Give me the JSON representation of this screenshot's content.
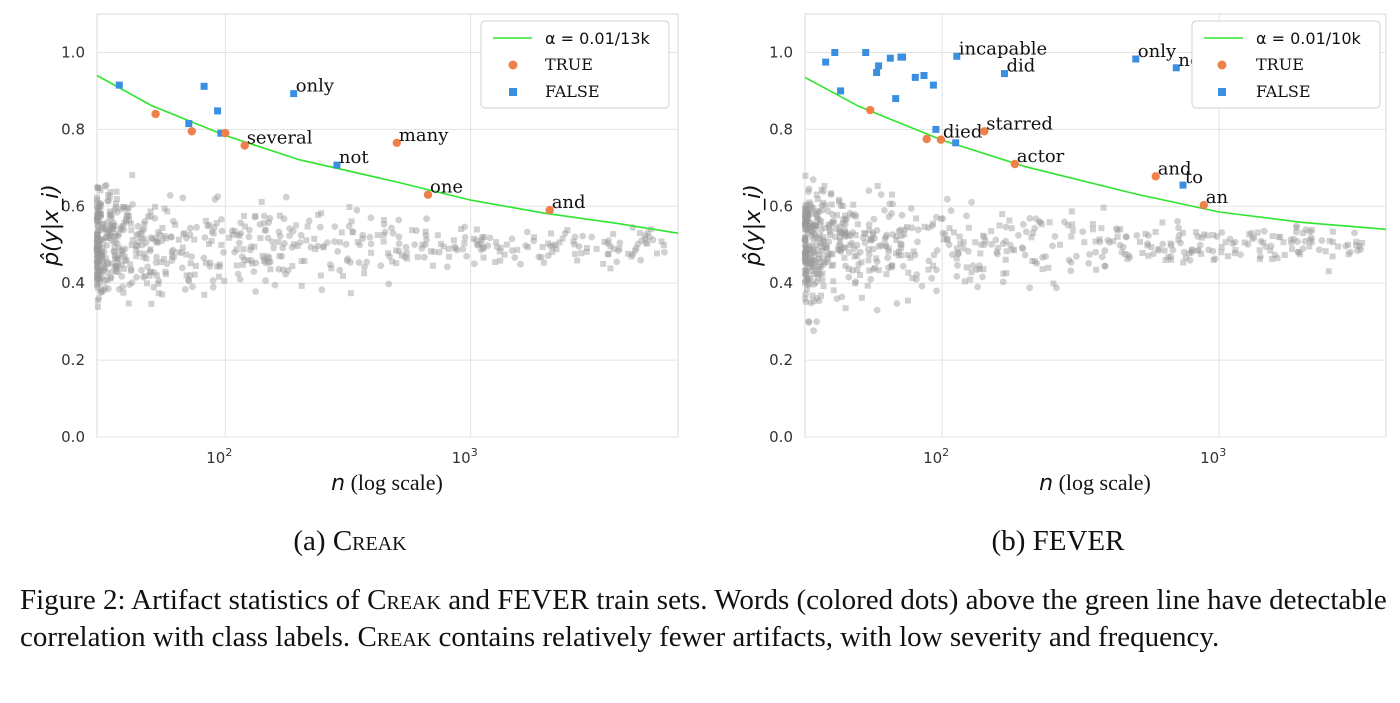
{
  "colors": {
    "grid": "#e3e3e3",
    "curve": "#2ee62e",
    "true": "#f0804a",
    "false": "#3b8fe0",
    "bg_points": "#9a9a9a"
  },
  "chart_data": [
    {
      "type": "scatter",
      "panel": "a",
      "subtitle": "(a) CREAK",
      "subtitle_prefix": "(a) ",
      "subtitle_name": "Creak",
      "xlabel_var": "n",
      "xlabel_rest": " (log scale)",
      "ylabel": "p̂(y|x_i)",
      "xscale": "log",
      "xlim": [
        30,
        7000
      ],
      "ylim": [
        0.0,
        1.1
      ],
      "yticks": [
        "0.0",
        "0.2",
        "0.4",
        "0.6",
        "0.8",
        "1.0"
      ],
      "xticks": [
        {
          "base": "10",
          "exp": "2",
          "value": 100
        },
        {
          "base": "10",
          "exp": "3",
          "value": 1000
        }
      ],
      "legend": {
        "position": "top-right",
        "curve_label": "α = 0.01/13k",
        "true_label": "TRUE",
        "false_label": "FALSE"
      },
      "curve": {
        "n": [
          30,
          50,
          100,
          200,
          500,
          1000,
          2000,
          4000,
          7000
        ],
        "y": [
          0.94,
          0.862,
          0.784,
          0.721,
          0.663,
          0.616,
          0.582,
          0.555,
          0.53
        ]
      },
      "true_points": [
        {
          "n": 52,
          "y": 0.84,
          "word": ""
        },
        {
          "n": 73,
          "y": 0.795,
          "word": ""
        },
        {
          "n": 100,
          "y": 0.79,
          "word": ""
        },
        {
          "n": 120,
          "y": 0.758,
          "word": "several"
        },
        {
          "n": 500,
          "y": 0.765,
          "word": "many"
        },
        {
          "n": 670,
          "y": 0.63,
          "word": "one"
        },
        {
          "n": 2100,
          "y": 0.59,
          "word": "and"
        }
      ],
      "false_points": [
        {
          "n": 37,
          "y": 0.915,
          "word": ""
        },
        {
          "n": 71,
          "y": 0.815,
          "word": ""
        },
        {
          "n": 82,
          "y": 0.912,
          "word": ""
        },
        {
          "n": 93,
          "y": 0.848,
          "word": ""
        },
        {
          "n": 96,
          "y": 0.79,
          "word": ""
        },
        {
          "n": 190,
          "y": 0.893,
          "word": "only"
        },
        {
          "n": 285,
          "y": 0.707,
          "word": "not"
        }
      ]
    },
    {
      "type": "scatter",
      "panel": "b",
      "subtitle": "(b) FEVER",
      "subtitle_prefix": "(b) ",
      "subtitle_name": "FEVER",
      "xlabel_var": "n",
      "xlabel_rest": " (log scale)",
      "ylabel": "p̂(y|x_i)",
      "xscale": "log",
      "xlim": [
        32,
        4000
      ],
      "ylim": [
        0.0,
        1.1
      ],
      "yticks": [
        "0.0",
        "0.2",
        "0.4",
        "0.6",
        "0.8",
        "1.0"
      ],
      "xticks": [
        {
          "base": "10",
          "exp": "2",
          "value": 100
        },
        {
          "base": "10",
          "exp": "3",
          "value": 1000
        }
      ],
      "legend": {
        "position": "top-right",
        "curve_label": "α = 0.01/10k",
        "true_label": "TRUE",
        "false_label": "FALSE"
      },
      "curve": {
        "n": [
          32,
          50,
          100,
          200,
          500,
          1000,
          2000,
          4000
        ],
        "y": [
          0.935,
          0.86,
          0.772,
          0.703,
          0.632,
          0.585,
          0.558,
          0.54
        ]
      },
      "true_points": [
        {
          "n": 55,
          "y": 0.85,
          "word": ""
        },
        {
          "n": 88,
          "y": 0.775,
          "word": ""
        },
        {
          "n": 99,
          "y": 0.773,
          "word": "died"
        },
        {
          "n": 142,
          "y": 0.795,
          "word": "starred"
        },
        {
          "n": 183,
          "y": 0.71,
          "word": "actor"
        },
        {
          "n": 590,
          "y": 0.678,
          "word": "and"
        },
        {
          "n": 880,
          "y": 0.603,
          "word": "an"
        }
      ],
      "false_points": [
        {
          "n": 38,
          "y": 0.975,
          "word": ""
        },
        {
          "n": 41,
          "y": 1.0,
          "word": ""
        },
        {
          "n": 43,
          "y": 0.9,
          "word": ""
        },
        {
          "n": 53,
          "y": 1.0,
          "word": ""
        },
        {
          "n": 58,
          "y": 0.948,
          "word": ""
        },
        {
          "n": 59,
          "y": 0.965,
          "word": ""
        },
        {
          "n": 65,
          "y": 0.985,
          "word": ""
        },
        {
          "n": 68,
          "y": 0.88,
          "word": ""
        },
        {
          "n": 71,
          "y": 0.988,
          "word": ""
        },
        {
          "n": 72,
          "y": 0.988,
          "word": ""
        },
        {
          "n": 80,
          "y": 0.935,
          "word": ""
        },
        {
          "n": 86,
          "y": 0.94,
          "word": ""
        },
        {
          "n": 93,
          "y": 0.915,
          "word": ""
        },
        {
          "n": 95,
          "y": 0.8,
          "word": ""
        },
        {
          "n": 113,
          "y": 0.99,
          "word": "incapable"
        },
        {
          "n": 112,
          "y": 0.765,
          "word": ""
        },
        {
          "n": 168,
          "y": 0.945,
          "word": "did"
        },
        {
          "n": 500,
          "y": 0.983,
          "word": "only"
        },
        {
          "n": 700,
          "y": 0.96,
          "word": "not"
        },
        {
          "n": 740,
          "y": 0.655,
          "word": "to"
        }
      ]
    }
  ],
  "caption": {
    "prefix": "Figure 2: Artifact statistics of ",
    "creak1": "Creak",
    "mid1": " and FEVER train sets. Words (colored dots) above the green line have detectable correlation with class labels. ",
    "creak2": "Creak",
    "mid2": " contains relatively fewer artifacts, with low severity and frequency."
  }
}
